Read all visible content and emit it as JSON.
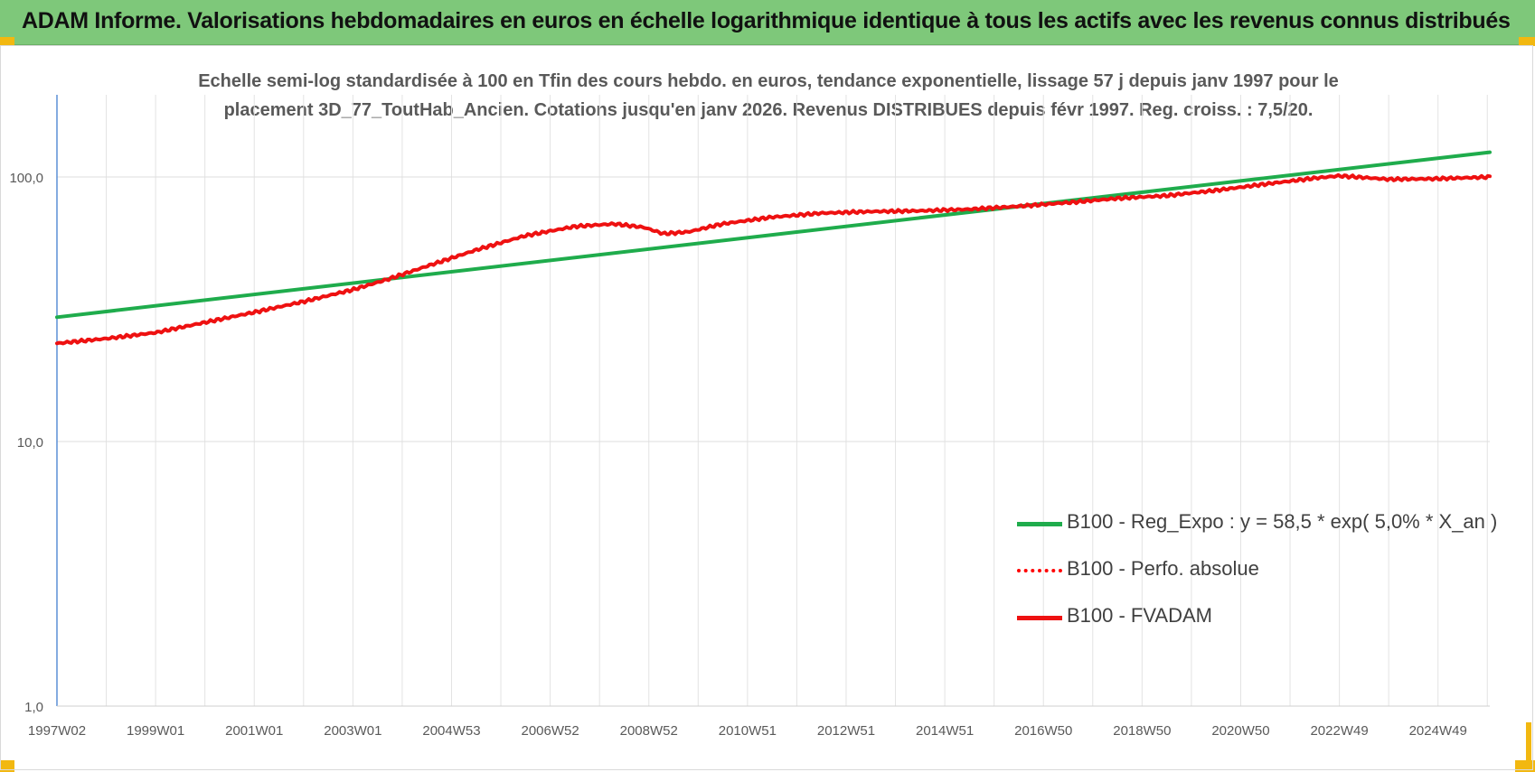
{
  "header": {
    "title": "ADAM Informe. Valorisations hebdomadaires en euros en échelle logarithmique identique à tous les actifs avec les revenus connus distribués"
  },
  "chart_data": {
    "type": "line",
    "title": "",
    "subtitle_lines": [
      "Echelle semi-log standardisée à 100 en Tfin des cours hebdo. en euros, tendance exponentielle, lissage 57 j depuis janv 1997 pour le",
      "placement 3D_77_ToutHab_Ancien. Cotations jusqu'en janv 2026. Revenus DISTRIBUES depuis févr 1997. Reg. croiss. : 7,5/20."
    ],
    "xlabel": "",
    "ylabel": "",
    "y_scale": "log",
    "ylim": [
      1,
      200
    ],
    "grid": true,
    "legend_position": "bottom-right",
    "y_ticks": [
      {
        "value": 1,
        "label": "1,0"
      },
      {
        "value": 10,
        "label": "10,0"
      },
      {
        "value": 100,
        "label": "100,0"
      }
    ],
    "x_range_years": [
      1997.0,
      2026.05
    ],
    "x_ticks": [
      {
        "year": 1997.0,
        "label": "1997W02"
      },
      {
        "year": 1999.0,
        "label": "1999W01"
      },
      {
        "year": 2001.0,
        "label": "2001W01"
      },
      {
        "year": 2003.0,
        "label": "2003W01"
      },
      {
        "year": 2005.0,
        "label": "2004W53"
      },
      {
        "year": 2007.0,
        "label": "2006W52"
      },
      {
        "year": 2009.0,
        "label": "2008W52"
      },
      {
        "year": 2011.0,
        "label": "2010W51"
      },
      {
        "year": 2013.0,
        "label": "2012W51"
      },
      {
        "year": 2015.0,
        "label": "2014W51"
      },
      {
        "year": 2017.0,
        "label": "2016W50"
      },
      {
        "year": 2019.0,
        "label": "2018W50"
      },
      {
        "year": 2021.0,
        "label": "2020W50"
      },
      {
        "year": 2023.0,
        "label": "2022W49"
      },
      {
        "year": 2025.0,
        "label": "2024W49"
      }
    ],
    "series": [
      {
        "name": "B100 - Reg_Expo : y = 58,5 * exp( 5,0% * X_an )",
        "color": "#1fac4c",
        "style": "solid",
        "points": [
          [
            1997.0,
            29.5
          ],
          [
            2026.05,
            124
          ]
        ]
      },
      {
        "name": "B100 - Perfo. absolue",
        "color": "#ff0000",
        "style": "dotted",
        "points": []
      },
      {
        "name": "B100 - FVADAM",
        "color": "#ee1111",
        "style": "solid",
        "points": [
          [
            1997.0,
            23.5
          ],
          [
            1998.0,
            24.5
          ],
          [
            1999.0,
            25.8
          ],
          [
            2000.0,
            28.2
          ],
          [
            2001.0,
            30.8
          ],
          [
            2002.0,
            33.8
          ],
          [
            2003.0,
            37.5
          ],
          [
            2003.7,
            41.0
          ],
          [
            2004.5,
            46.0
          ],
          [
            2005.5,
            53.0
          ],
          [
            2006.5,
            60.0
          ],
          [
            2007.5,
            65.0
          ],
          [
            2008.3,
            66.5
          ],
          [
            2008.9,
            64.5
          ],
          [
            2009.3,
            61.0
          ],
          [
            2009.8,
            62.0
          ],
          [
            2010.5,
            66.5
          ],
          [
            2011.5,
            70.5
          ],
          [
            2012.5,
            73.0
          ],
          [
            2013.5,
            74.0
          ],
          [
            2014.5,
            74.5
          ],
          [
            2015.5,
            75.5
          ],
          [
            2016.5,
            77.5
          ],
          [
            2017.5,
            80.0
          ],
          [
            2018.5,
            83.0
          ],
          [
            2019.5,
            85.0
          ],
          [
            2020.5,
            89.0
          ],
          [
            2021.5,
            94.0
          ],
          [
            2022.5,
            99.0
          ],
          [
            2023.0,
            101.0
          ],
          [
            2024.0,
            98.0
          ],
          [
            2025.0,
            98.5
          ],
          [
            2026.05,
            100.0
          ]
        ]
      }
    ]
  }
}
